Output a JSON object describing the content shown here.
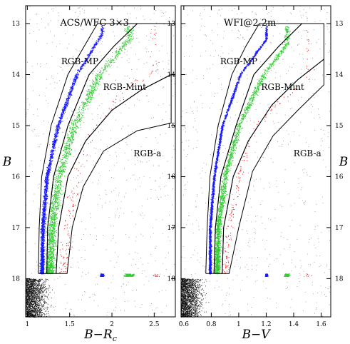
{
  "chart_data": [
    {
      "type": "scatter",
      "title": "ACS/WFC 3×3",
      "xlabel": "B−R",
      "xlabel_sub": "c",
      "ylabel": "B",
      "xlim": [
        0.98,
        2.75
      ],
      "ylim": [
        18.75,
        12.65
      ],
      "x_ticks": [
        "1",
        "1.5",
        "2",
        "2.5"
      ],
      "x_tick_values": [
        1.0,
        1.5,
        2.0,
        2.5
      ],
      "y_ticks": [
        "13",
        "14",
        "15",
        "16",
        "17",
        "18"
      ],
      "y_tick_values": [
        13,
        14,
        15,
        16,
        17,
        18
      ],
      "series": [
        {
          "name": "RGB-MP",
          "color": "#1a1aff",
          "label_at": [
            1.62,
            13.8
          ],
          "ridge": [
            [
              1.17,
              17.9
            ],
            [
              1.18,
              17.0
            ],
            [
              1.23,
              16.0
            ],
            [
              1.36,
              15.0
            ],
            [
              1.58,
              14.0
            ],
            [
              1.88,
              13.2
            ]
          ]
        },
        {
          "name": "RGB-Mint",
          "color": "#33cc33",
          "label_at": [
            2.15,
            14.3
          ],
          "ridge": [
            [
              1.26,
              17.9
            ],
            [
              1.29,
              17.0
            ],
            [
              1.37,
              16.0
            ],
            [
              1.55,
              15.0
            ],
            [
              1.85,
              14.0
            ],
            [
              2.2,
              13.3
            ]
          ]
        },
        {
          "name": "RGB-a",
          "color": "#ff2a2a",
          "label_at": [
            2.42,
            15.6
          ],
          "ridge": [
            [
              1.42,
              17.9
            ],
            [
              1.48,
              17.0
            ],
            [
              1.58,
              16.0
            ],
            [
              1.8,
              15.0
            ],
            [
              2.15,
              14.3
            ],
            [
              2.5,
              13.9
            ]
          ]
        }
      ],
      "boxes": {
        "rgb_mp": [
          [
            1.13,
            17.9
          ],
          [
            1.14,
            17.0
          ],
          [
            1.17,
            16.0
          ],
          [
            1.28,
            15.0
          ],
          [
            1.48,
            14.0
          ],
          [
            1.67,
            13.45
          ],
          [
            1.83,
            13.0
          ],
          [
            2.3,
            13.0
          ],
          [
            2.02,
            13.45
          ],
          [
            1.73,
            14.0
          ],
          [
            1.48,
            15.0
          ],
          [
            1.31,
            16.0
          ],
          [
            1.24,
            17.0
          ],
          [
            1.23,
            17.9
          ],
          [
            1.13,
            17.9
          ]
        ],
        "rgb_mint": [
          [
            1.23,
            17.9
          ],
          [
            1.24,
            17.0
          ],
          [
            1.31,
            16.0
          ],
          [
            1.48,
            15.0
          ],
          [
            1.73,
            14.0
          ],
          [
            2.02,
            13.45
          ],
          [
            2.3,
            13.0
          ],
          [
            2.7,
            13.0
          ],
          [
            2.7,
            14.0
          ],
          [
            2.35,
            14.3
          ],
          [
            2.0,
            14.7
          ],
          [
            1.69,
            15.3
          ],
          [
            1.48,
            16.0
          ],
          [
            1.37,
            17.0
          ],
          [
            1.34,
            17.9
          ],
          [
            1.23,
            17.9
          ]
        ],
        "rgb_a": [
          [
            1.34,
            17.9
          ],
          [
            1.37,
            17.0
          ],
          [
            1.48,
            16.0
          ],
          [
            1.69,
            15.3
          ],
          [
            2.0,
            14.7
          ],
          [
            2.35,
            14.3
          ],
          [
            2.7,
            14.0
          ],
          [
            2.7,
            14.95
          ],
          [
            2.3,
            15.1
          ],
          [
            1.9,
            15.5
          ],
          [
            1.66,
            16.2
          ],
          [
            1.53,
            17.0
          ],
          [
            1.47,
            17.9
          ],
          [
            1.34,
            17.9
          ]
        ]
      }
    },
    {
      "type": "scatter",
      "title": "WFI@2.2m",
      "xlabel": "B−V",
      "ylabel": "B",
      "xlim": [
        0.58,
        1.67
      ],
      "ylim": [
        18.75,
        12.65
      ],
      "x_ticks": [
        "0.6",
        "0.8",
        "1",
        "1.2",
        "1.4",
        "1.6"
      ],
      "x_tick_values": [
        0.6,
        0.8,
        1.0,
        1.2,
        1.4,
        1.6
      ],
      "y_ticks": [
        "13",
        "14",
        "15",
        "16",
        "17",
        "18"
      ],
      "y_tick_values": [
        13,
        14,
        15,
        16,
        17,
        18
      ],
      "series": [
        {
          "name": "RGB-MP",
          "color": "#1a1aff",
          "label_at": [
            1.0,
            13.8
          ],
          "ridge": [
            [
              0.79,
              17.9
            ],
            [
              0.79,
              17.0
            ],
            [
              0.82,
              16.0
            ],
            [
              0.88,
              15.0
            ],
            [
              1.01,
              14.0
            ],
            [
              1.2,
              13.3
            ]
          ]
        },
        {
          "name": "RGB-Mint",
          "color": "#33cc33",
          "label_at": [
            1.32,
            14.3
          ],
          "ridge": [
            [
              0.84,
              17.9
            ],
            [
              0.85,
              17.0
            ],
            [
              0.9,
              16.0
            ],
            [
              1.0,
              15.0
            ],
            [
              1.18,
              14.0
            ],
            [
              1.35,
              13.4
            ]
          ]
        },
        {
          "name": "RGB-a",
          "color": "#ff2a2a",
          "label_at": [
            1.5,
            15.6
          ],
          "ridge": [
            [
              0.9,
              17.9
            ],
            [
              0.93,
              17.0
            ],
            [
              1.0,
              16.0
            ],
            [
              1.12,
              15.0
            ],
            [
              1.3,
              14.5
            ],
            [
              1.5,
              14.1
            ]
          ]
        }
      ],
      "boxes": {
        "rgb_mp": [
          [
            0.76,
            17.9
          ],
          [
            0.77,
            17.0
          ],
          [
            0.79,
            16.0
          ],
          [
            0.85,
            15.0
          ],
          [
            0.95,
            14.0
          ],
          [
            1.05,
            13.45
          ],
          [
            1.15,
            13.0
          ],
          [
            1.46,
            13.0
          ],
          [
            1.29,
            13.45
          ],
          [
            1.11,
            14.0
          ],
          [
            0.98,
            15.0
          ],
          [
            0.87,
            16.0
          ],
          [
            0.83,
            17.0
          ],
          [
            0.82,
            17.9
          ],
          [
            0.76,
            17.9
          ]
        ],
        "rgb_mint": [
          [
            0.82,
            17.9
          ],
          [
            0.83,
            17.0
          ],
          [
            0.87,
            16.0
          ],
          [
            0.98,
            15.0
          ],
          [
            1.11,
            14.0
          ],
          [
            1.29,
            13.45
          ],
          [
            1.46,
            13.0
          ],
          [
            1.62,
            13.0
          ],
          [
            1.62,
            13.7
          ],
          [
            1.43,
            14.1
          ],
          [
            1.24,
            14.6
          ],
          [
            1.07,
            15.3
          ],
          [
            0.96,
            16.0
          ],
          [
            0.89,
            17.0
          ],
          [
            0.88,
            17.9
          ],
          [
            0.82,
            17.9
          ]
        ],
        "rgb_a": [
          [
            0.88,
            17.9
          ],
          [
            0.89,
            17.0
          ],
          [
            0.96,
            16.0
          ],
          [
            1.07,
            15.3
          ],
          [
            1.24,
            14.6
          ],
          [
            1.43,
            14.1
          ],
          [
            1.62,
            13.7
          ],
          [
            1.62,
            14.2
          ],
          [
            1.43,
            14.7
          ],
          [
            1.25,
            15.2
          ],
          [
            1.1,
            15.9
          ],
          [
            1.0,
            17.0
          ],
          [
            0.93,
            17.9
          ],
          [
            0.88,
            17.9
          ]
        ]
      }
    }
  ]
}
